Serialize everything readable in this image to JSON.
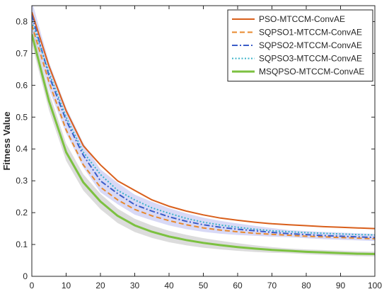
{
  "chart_data": {
    "type": "line",
    "title": "",
    "xlabel": "",
    "ylabel": "Fitness Value",
    "xlim": [
      0,
      100
    ],
    "ylim": [
      0,
      0.85
    ],
    "xticks": [
      0,
      10,
      20,
      30,
      40,
      50,
      60,
      70,
      80,
      90,
      100
    ],
    "yticks": [
      0,
      0.1,
      0.2,
      0.3,
      0.4,
      0.5,
      0.6,
      0.7,
      0.8
    ],
    "ytick_labels": [
      "0",
      "0.1",
      "0.2",
      "0.3",
      "0.4",
      "0.5",
      "0.6",
      "0.7",
      "0.8"
    ],
    "grid": false,
    "legend_position": "top-right",
    "x": [
      0,
      5,
      10,
      15,
      20,
      25,
      30,
      35,
      40,
      45,
      50,
      55,
      60,
      65,
      70,
      75,
      80,
      85,
      90,
      95,
      100
    ],
    "series": [
      {
        "name": "PSO-MTCCM-ConvAE",
        "color": "#D95F1B",
        "dash": "solid",
        "values": [
          0.83,
          0.66,
          0.52,
          0.41,
          0.35,
          0.3,
          0.27,
          0.24,
          0.22,
          0.205,
          0.193,
          0.183,
          0.176,
          0.17,
          0.165,
          0.162,
          0.159,
          0.156,
          0.154,
          0.152,
          0.15
        ]
      },
      {
        "name": "SQPSO1-MTCCM-ConvAE",
        "color": "#E8892D",
        "dash": "dashed",
        "values": [
          0.79,
          0.61,
          0.46,
          0.35,
          0.28,
          0.24,
          0.21,
          0.19,
          0.175,
          0.162,
          0.152,
          0.145,
          0.14,
          0.135,
          0.132,
          0.129,
          0.126,
          0.124,
          0.122,
          0.12,
          0.118
        ]
      },
      {
        "name": "SQPSO2-MTCCM-ConvAE",
        "color": "#3A5CC8",
        "dash": "dashdot",
        "values": [
          0.82,
          0.63,
          0.49,
          0.38,
          0.3,
          0.26,
          0.225,
          0.205,
          0.187,
          0.173,
          0.162,
          0.154,
          0.148,
          0.143,
          0.138,
          0.134,
          0.131,
          0.128,
          0.126,
          0.124,
          0.122
        ]
      },
      {
        "name": "SQPSO3-MTCCM-ConvAE",
        "color": "#3BB3C9",
        "dash": "dotted",
        "values": [
          0.8,
          0.64,
          0.5,
          0.39,
          0.32,
          0.27,
          0.24,
          0.215,
          0.198,
          0.182,
          0.17,
          0.161,
          0.154,
          0.148,
          0.143,
          0.14,
          0.137,
          0.135,
          0.133,
          0.131,
          0.13
        ]
      },
      {
        "name": "MSQPSO-MTCCM-ConvAE",
        "color": "#7CC140",
        "dash": "solid",
        "values": [
          0.76,
          0.55,
          0.39,
          0.295,
          0.235,
          0.19,
          0.16,
          0.14,
          0.125,
          0.114,
          0.105,
          0.098,
          0.092,
          0.087,
          0.083,
          0.08,
          0.077,
          0.075,
          0.073,
          0.071,
          0.07
        ]
      }
    ]
  }
}
